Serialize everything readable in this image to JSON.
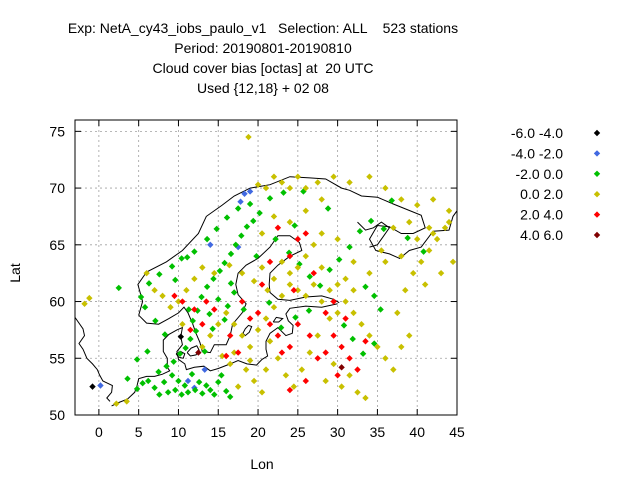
{
  "header": {
    "line1": "Exp: NetA_cy43_iobs_paulo_v1   Selection: ALL    523 stations",
    "line2": "Period: 20190801-20190810",
    "line3": "Cloud cover bias [octas] at  20 UTC",
    "line4": "Used {12,18} + 02 08"
  },
  "chart_data": {
    "type": "scatter",
    "title": "Cloud cover bias [octas] at  20 UTC",
    "xlabel": "Lon",
    "ylabel": "Lat",
    "xlim": [
      -3,
      45
    ],
    "ylim": [
      50,
      76
    ],
    "xticks": [
      0,
      5,
      10,
      15,
      20,
      25,
      30,
      35,
      40,
      45
    ],
    "yticks": [
      50,
      55,
      60,
      65,
      70,
      75
    ],
    "grid": true,
    "legend_position": "right",
    "series": [
      {
        "name": "-6.0 -4.0",
        "color": "#000000",
        "points": [
          [
            -0.8,
            52.5
          ],
          [
            10.3,
            56.9
          ]
        ]
      },
      {
        "name": "-4.0 -2.0",
        "color": "#4169e1",
        "points": [
          [
            0.2,
            52.6
          ],
          [
            11.2,
            53.0
          ],
          [
            13.3,
            54.0
          ],
          [
            12.0,
            52.4
          ],
          [
            18.3,
            69.5
          ],
          [
            19.0,
            69.7
          ],
          [
            17.8,
            68.8
          ],
          [
            14.0,
            65.0
          ],
          [
            17.5,
            64.8
          ]
        ]
      },
      {
        "name": "-2.0 0.0",
        "color": "#00c000",
        "points": [
          [
            2.5,
            61.2
          ],
          [
            4.8,
            52.3
          ],
          [
            5.5,
            52.8
          ],
          [
            6.2,
            53.0
          ],
          [
            7.0,
            52.4
          ],
          [
            7.6,
            51.8
          ],
          [
            8.2,
            52.9
          ],
          [
            8.7,
            52.0
          ],
          [
            9.2,
            53.5
          ],
          [
            9.6,
            52.2
          ],
          [
            10.0,
            53.0
          ],
          [
            10.4,
            51.8
          ],
          [
            10.8,
            52.6
          ],
          [
            11.2,
            52.0
          ],
          [
            11.7,
            53.6
          ],
          [
            12.1,
            52.2
          ],
          [
            12.6,
            52.9
          ],
          [
            13.0,
            51.9
          ],
          [
            13.5,
            52.6
          ],
          [
            14.0,
            52.2
          ],
          [
            14.5,
            51.8
          ],
          [
            15.0,
            52.9
          ],
          [
            15.4,
            53.5
          ],
          [
            16.0,
            52.1
          ],
          [
            16.5,
            51.6
          ],
          [
            7.5,
            53.8
          ],
          [
            8.5,
            54.3
          ],
          [
            9.4,
            54.7
          ],
          [
            10.2,
            55.4
          ],
          [
            10.9,
            55.9
          ],
          [
            11.5,
            56.7
          ],
          [
            12.2,
            57.4
          ],
          [
            11.8,
            58.3
          ],
          [
            12.4,
            59.2
          ],
          [
            12.9,
            60.4
          ],
          [
            13.6,
            61.3
          ],
          [
            14.4,
            62.0
          ],
          [
            15.2,
            62.7
          ],
          [
            15.8,
            63.4
          ],
          [
            16.6,
            64.2
          ],
          [
            17.2,
            65.0
          ],
          [
            17.9,
            65.8
          ],
          [
            18.6,
            66.6
          ],
          [
            19.4,
            67.1
          ],
          [
            20.2,
            67.8
          ],
          [
            15.0,
            60.2
          ],
          [
            16.2,
            59.6
          ],
          [
            17.0,
            60.8
          ],
          [
            18.2,
            59.3
          ],
          [
            14.3,
            57.6
          ],
          [
            15.8,
            58.4
          ],
          [
            13.3,
            55.6
          ],
          [
            8.3,
            57.1
          ],
          [
            7.1,
            58.3
          ],
          [
            5.8,
            59.5
          ],
          [
            5.3,
            60.4
          ],
          [
            6.3,
            61.6
          ],
          [
            7.6,
            62.4
          ],
          [
            9.2,
            63.1
          ],
          [
            10.4,
            63.8
          ],
          [
            12.0,
            64.4
          ],
          [
            13.6,
            65.5
          ],
          [
            14.8,
            66.4
          ],
          [
            16.1,
            67.4
          ],
          [
            17.5,
            68.2
          ],
          [
            19.0,
            68.6
          ],
          [
            21.5,
            69.1
          ],
          [
            23.2,
            69.6
          ],
          [
            25.7,
            69.7
          ],
          [
            22.2,
            65.5
          ],
          [
            23.9,
            64.3
          ],
          [
            25.2,
            63.3
          ],
          [
            26.5,
            62.2
          ],
          [
            27.8,
            61.4
          ],
          [
            29.0,
            62.8
          ],
          [
            30.2,
            63.7
          ],
          [
            31.5,
            64.8
          ],
          [
            32.8,
            66.2
          ],
          [
            34.2,
            67.1
          ],
          [
            35.8,
            66.4
          ],
          [
            33.5,
            61.3
          ],
          [
            34.6,
            60.5
          ],
          [
            35.4,
            59.3
          ],
          [
            30.8,
            57.9
          ],
          [
            31.9,
            56.7
          ],
          [
            33.2,
            55.4
          ],
          [
            34.6,
            56.3
          ],
          [
            26.4,
            59.2
          ],
          [
            24.7,
            58.6
          ],
          [
            22.9,
            57.7
          ],
          [
            21.4,
            59.9
          ],
          [
            4.8,
            54.9
          ],
          [
            6.1,
            55.6
          ],
          [
            3.6,
            53.2
          ],
          [
            11.1,
            63.9
          ],
          [
            9.6,
            61.9
          ],
          [
            13.9,
            58.9
          ],
          [
            16.6,
            61.6
          ],
          [
            19.8,
            64.0
          ],
          [
            24.6,
            66.7
          ],
          [
            28.8,
            68.2
          ],
          [
            36.8,
            68.9
          ],
          [
            38.8,
            65.6
          ],
          [
            40.8,
            64.4
          ],
          [
            11.3,
            59.3
          ]
        ]
      },
      {
        "name": "0.0 2.0",
        "color": "#c8c000",
        "points": [
          [
            18.8,
            74.5
          ],
          [
            -1.8,
            59.8
          ],
          [
            -1.2,
            60.3
          ],
          [
            2.2,
            51.0
          ],
          [
            3.5,
            51.2
          ],
          [
            14.5,
            62.5
          ],
          [
            16.4,
            63.2
          ],
          [
            18.0,
            62.5
          ],
          [
            19.5,
            61.8
          ],
          [
            20.5,
            63.0
          ],
          [
            21.2,
            61.0
          ],
          [
            22.0,
            62.0
          ],
          [
            23.0,
            63.5
          ],
          [
            24.0,
            62.5
          ],
          [
            25.0,
            61.0
          ],
          [
            26.0,
            60.5
          ],
          [
            27.0,
            61.5
          ],
          [
            28.0,
            60.0
          ],
          [
            29.0,
            58.5
          ],
          [
            30.0,
            59.0
          ],
          [
            31.0,
            60.0
          ],
          [
            32.0,
            59.0
          ],
          [
            33.0,
            58.0
          ],
          [
            34.0,
            57.0
          ],
          [
            35.0,
            56.0
          ],
          [
            36.0,
            55.0
          ],
          [
            37.0,
            54.0
          ],
          [
            38.0,
            56.0
          ],
          [
            39.0,
            57.0
          ],
          [
            37.5,
            59.0
          ],
          [
            38.5,
            61.0
          ],
          [
            39.5,
            62.5
          ],
          [
            40.5,
            63.5
          ],
          [
            41.5,
            64.5
          ],
          [
            42.5,
            65.5
          ],
          [
            43.5,
            66.5
          ],
          [
            44.0,
            68.0
          ],
          [
            42.0,
            69.0
          ],
          [
            40.0,
            68.5
          ],
          [
            38.0,
            69.0
          ],
          [
            36.0,
            70.0
          ],
          [
            34.0,
            71.0
          ],
          [
            31.5,
            70.5
          ],
          [
            29.5,
            71.0
          ],
          [
            27.5,
            70.5
          ],
          [
            25.0,
            71.0
          ],
          [
            23.0,
            70.5
          ],
          [
            21.0,
            70.0
          ],
          [
            26.0,
            68.0
          ],
          [
            24.0,
            67.0
          ],
          [
            22.0,
            67.5
          ],
          [
            20.5,
            66.0
          ],
          [
            28.0,
            66.0
          ],
          [
            30.0,
            65.5
          ],
          [
            32.0,
            63.5
          ],
          [
            34.0,
            62.5
          ],
          [
            36.0,
            63.5
          ],
          [
            38.0,
            64.0
          ],
          [
            40.0,
            65.5
          ],
          [
            42.0,
            66.0
          ],
          [
            44.5,
            63.5
          ],
          [
            43.0,
            62.5
          ],
          [
            41.0,
            61.5
          ],
          [
            21.5,
            56.5
          ],
          [
            22.5,
            55.0
          ],
          [
            23.5,
            53.5
          ],
          [
            24.5,
            52.5
          ],
          [
            25.5,
            54.0
          ],
          [
            26.5,
            55.5
          ],
          [
            27.5,
            57.0
          ],
          [
            28.5,
            53.0
          ],
          [
            29.5,
            54.5
          ],
          [
            30.5,
            52.5
          ],
          [
            31.5,
            53.5
          ],
          [
            32.5,
            52.0
          ],
          [
            33.5,
            51.5
          ],
          [
            18.5,
            54.0
          ],
          [
            19.5,
            53.0
          ],
          [
            20.5,
            52.0
          ],
          [
            17.5,
            52.5
          ],
          [
            16.5,
            54.5
          ],
          [
            15.5,
            55.2
          ],
          [
            13.0,
            56.0
          ],
          [
            14.0,
            57.0
          ],
          [
            15.0,
            58.0
          ],
          [
            16.0,
            59.0
          ],
          [
            17.0,
            58.0
          ],
          [
            18.0,
            57.0
          ],
          [
            19.0,
            56.0
          ],
          [
            20.0,
            57.5
          ],
          [
            21.0,
            58.5
          ],
          [
            22.0,
            59.5
          ],
          [
            23.0,
            60.5
          ],
          [
            24.0,
            61.5
          ],
          [
            25.0,
            63.0
          ],
          [
            26.0,
            64.0
          ],
          [
            27.0,
            65.0
          ],
          [
            28.0,
            63.0
          ],
          [
            29.0,
            61.0
          ],
          [
            30.0,
            61.5
          ],
          [
            31.0,
            62.0
          ],
          [
            32.0,
            61.0
          ],
          [
            9.0,
            59.5
          ],
          [
            10.0,
            60.0
          ],
          [
            11.0,
            61.0
          ],
          [
            12.0,
            62.0
          ],
          [
            13.0,
            63.0
          ],
          [
            10.5,
            58.0
          ],
          [
            8.0,
            60.5
          ],
          [
            7.0,
            61.0
          ],
          [
            6.0,
            62.5
          ],
          [
            20.0,
            70.3
          ],
          [
            22.0,
            71.0
          ],
          [
            24.0,
            70.0
          ],
          [
            26.0,
            70.0
          ],
          [
            28.0,
            69.0
          ],
          [
            17.0,
            55.5
          ],
          [
            19.0,
            54.8
          ],
          [
            21.0,
            54.0
          ],
          [
            35.5,
            64.5
          ],
          [
            37.0,
            66.5
          ],
          [
            39.0,
            67.0
          ],
          [
            44.0,
            67.0
          ],
          [
            41.5,
            66.5
          ]
        ]
      },
      {
        "name": "2.0 4.0",
        "color": "#ff0000",
        "points": [
          [
            10.5,
            60.0
          ],
          [
            12.0,
            59.3
          ],
          [
            13.0,
            58.0
          ],
          [
            13.5,
            60.0
          ],
          [
            16.0,
            55.2
          ],
          [
            17.5,
            55.5
          ],
          [
            19.0,
            58.5
          ],
          [
            20.0,
            59.0
          ],
          [
            21.5,
            58.0
          ],
          [
            22.5,
            57.0
          ],
          [
            23.0,
            55.5
          ],
          [
            24.0,
            56.0
          ],
          [
            25.0,
            58.0
          ],
          [
            26.5,
            57.0
          ],
          [
            27.5,
            55.0
          ],
          [
            28.5,
            55.5
          ],
          [
            29.5,
            57.0
          ],
          [
            30.5,
            56.0
          ],
          [
            31.5,
            55.0
          ],
          [
            32.5,
            54.0
          ],
          [
            33.5,
            56.5
          ],
          [
            28.5,
            59.0
          ],
          [
            29.5,
            60.0
          ],
          [
            31.0,
            58.5
          ],
          [
            24.0,
            64.0
          ],
          [
            25.0,
            65.5
          ],
          [
            26.0,
            66.0
          ],
          [
            22.5,
            66.5
          ],
          [
            24.5,
            61.0
          ],
          [
            27.0,
            62.5
          ],
          [
            20.5,
            61.5
          ],
          [
            21.5,
            63.5
          ],
          [
            14.5,
            59.3
          ],
          [
            11.5,
            57.5
          ],
          [
            16.5,
            57.0
          ],
          [
            18.0,
            60.0
          ],
          [
            9.5,
            60.5
          ],
          [
            30.0,
            53.5
          ],
          [
            26.0,
            53.0
          ],
          [
            24.0,
            52.2
          ]
        ]
      },
      {
        "name": "4.0 6.0",
        "color": "#800000",
        "points": [
          [
            12.5,
            55.5
          ],
          [
            30.5,
            54.2
          ]
        ]
      }
    ]
  }
}
